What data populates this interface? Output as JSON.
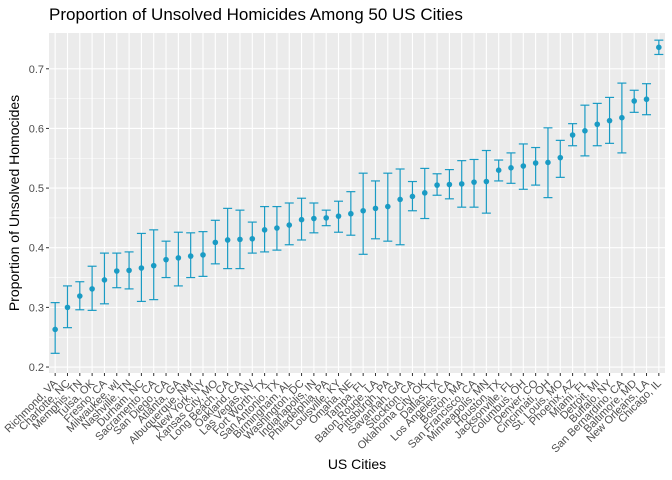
{
  "chart_data": {
    "type": "scatter",
    "title": "Proportion of Unsolved Homicides Among 50 US Cities",
    "xlabel": "US Cities",
    "ylabel": "Proportion of Unsolved Homocides",
    "ylim": [
      0.19,
      0.76
    ],
    "yticks": [
      0.2,
      0.3,
      0.4,
      0.5,
      0.6,
      0.7
    ],
    "ytick_labels": [
      "0.2",
      "0.3",
      "0.4",
      "0.5",
      "0.6",
      "0.7"
    ],
    "grid": true,
    "legend": "none",
    "colors": {
      "point": "#1a9bc4",
      "panel": "#ebebeb",
      "grid": "#ffffff"
    },
    "categories": [
      "Richmond, VA",
      "Charlotte, NC",
      "Memphis, TN",
      "Tulsa, OK",
      "Fresno, CA",
      "Milwaukee, wI",
      "Nashville, TN",
      "Durham, NC",
      "Sacramento, CA",
      "San Diego, CA",
      "Atlanta, GA",
      "Albuquerque, NM",
      "New York, NY",
      "Kansas City, MO",
      "Long Beach, CA",
      "Oakland, CA",
      "Las Vegas, NV",
      "Fort Worth, TX",
      "San Antonio, TX",
      "Birmingham, AL",
      "Washington, DC",
      "Indianapolis, IN",
      "Philadelphia, PA",
      "Louisville, KY",
      "Omaha, NE",
      "Tampa, FL",
      "Baton Rouge, LA",
      "Pittsburgh, PA",
      "Savannah, GA",
      "Stockton, CA",
      "Oklahoma City, OK",
      "Dallas, TX",
      "Los Angeles, CA",
      "Boston, MA",
      "San Francisco, CA",
      "Minneapolis, MN",
      "Houston, TX",
      "Jacksonville, FL",
      "Columbus, OH",
      "Denver, CO",
      "Cincinnati, OH",
      "St. Louis, MO",
      "Phoenix, AZ",
      "Miami, FL",
      "Detroit, MI",
      "Buffalo, NY",
      "San Bernardino, CA",
      "Baltimore, MD",
      "New Orleans, LA",
      "Chicago, IL"
    ],
    "series": [
      {
        "estimate": [
          0.263,
          0.3,
          0.319,
          0.331,
          0.346,
          0.361,
          0.362,
          0.366,
          0.37,
          0.38,
          0.383,
          0.386,
          0.388,
          0.409,
          0.413,
          0.414,
          0.415,
          0.43,
          0.433,
          0.438,
          0.447,
          0.449,
          0.45,
          0.453,
          0.457,
          0.462,
          0.466,
          0.469,
          0.481,
          0.486,
          0.492,
          0.505,
          0.506,
          0.507,
          0.51,
          0.511,
          0.53,
          0.534,
          0.537,
          0.542,
          0.543,
          0.551,
          0.589,
          0.596,
          0.607,
          0.613,
          0.618,
          0.646,
          0.649,
          0.736
        ],
        "lower": [
          0.223,
          0.266,
          0.296,
          0.295,
          0.306,
          0.333,
          0.331,
          0.31,
          0.313,
          0.35,
          0.336,
          0.35,
          0.352,
          0.373,
          0.365,
          0.365,
          0.391,
          0.393,
          0.396,
          0.405,
          0.413,
          0.425,
          0.437,
          0.426,
          0.421,
          0.389,
          0.415,
          0.411,
          0.405,
          0.462,
          0.449,
          0.488,
          0.482,
          0.468,
          0.468,
          0.458,
          0.512,
          0.508,
          0.498,
          0.505,
          0.484,
          0.518,
          0.571,
          0.554,
          0.571,
          0.575,
          0.559,
          0.627,
          0.623,
          0.724
        ],
        "upper": [
          0.308,
          0.336,
          0.343,
          0.369,
          0.391,
          0.391,
          0.393,
          0.424,
          0.43,
          0.411,
          0.426,
          0.425,
          0.427,
          0.446,
          0.466,
          0.463,
          0.443,
          0.469,
          0.469,
          0.475,
          0.483,
          0.475,
          0.463,
          0.478,
          0.494,
          0.525,
          0.512,
          0.525,
          0.532,
          0.511,
          0.533,
          0.524,
          0.531,
          0.546,
          0.548,
          0.563,
          0.547,
          0.559,
          0.574,
          0.568,
          0.601,
          0.58,
          0.608,
          0.639,
          0.642,
          0.652,
          0.676,
          0.664,
          0.675,
          0.748
        ]
      }
    ]
  }
}
